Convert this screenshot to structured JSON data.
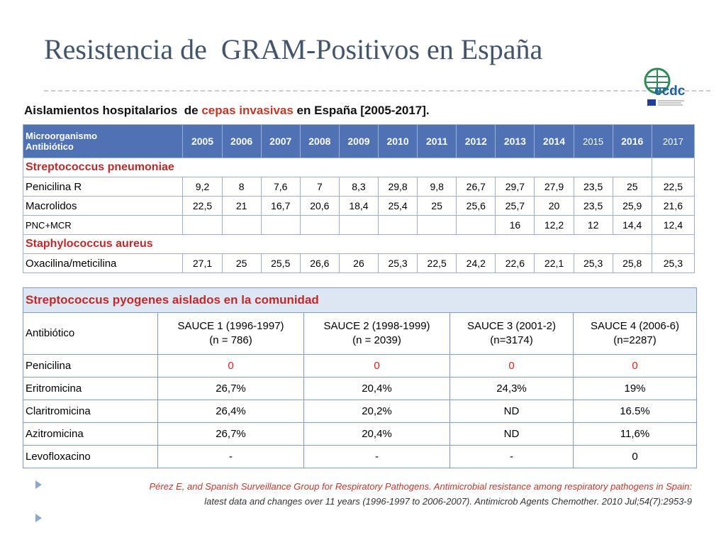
{
  "title": "Resistencia de  GRAM-Positivos en España",
  "logo_text": "ecdc",
  "subtitle": [
    "Aislamientos hospitalarios  de ",
    "cepas invasivas",
    " en España [2005-2017]."
  ],
  "table1": {
    "header_label": [
      "Microorganismo",
      "Antibiótico"
    ],
    "years": [
      "2005",
      "2006",
      "2007",
      "2008",
      "2009",
      "2010",
      "2011",
      "2012",
      "2013",
      "2014",
      "2015",
      "2016",
      "2017"
    ],
    "rows": [
      {
        "section": "Streptococcus pneumoniae"
      },
      {
        "label": "Penicilina R",
        "cells": [
          "9,2",
          "8",
          "7,6",
          "7",
          "8,3",
          "29,8",
          "9,8",
          "26,7",
          "29,7",
          "27,9",
          "23,5",
          "25",
          "22,5"
        ]
      },
      {
        "label": "Macrolidos",
        "cells": [
          "22,5",
          "21",
          "16,7",
          "20,6",
          "18,4",
          "25,4",
          "25",
          "25,6",
          "25,7",
          "20",
          "23,5",
          "25,9",
          "21,6"
        ]
      },
      {
        "label": "PNC+MCR",
        "cells": [
          null,
          null,
          null,
          null,
          null,
          null,
          null,
          null,
          "16",
          "12,2",
          "12",
          "14,4",
          "12,4"
        ]
      },
      {
        "section": "Staphylococcus aureus"
      },
      {
        "label": "Oxacilina/meticilina",
        "cells": [
          "27,1",
          "25",
          "25,5",
          "26,6",
          "26",
          "25,3",
          "22,5",
          "24,2",
          "22,6",
          "22,1",
          "25,3",
          "25,8",
          "25,3"
        ]
      }
    ]
  },
  "table2": {
    "title": "Streptococcus pyogenes aislados en la comunidad",
    "header": [
      [
        "Antibiótico"
      ],
      [
        "SAUCE 1 (1996-1997)",
        "(n = 786)"
      ],
      [
        "SAUCE 2  (1998-1999)",
        "(n = 2039)"
      ],
      [
        "SAUCE 3  (2001-2)",
        "(n=3174)"
      ],
      [
        "SAUCE 4 (2006-6)",
        "(n=2287)"
      ]
    ],
    "rows": [
      [
        "Penicilina",
        "0",
        "0",
        "0",
        "0"
      ],
      [
        "Eritromicina",
        "26,7%",
        "20,4%",
        "24,3%",
        "19%"
      ],
      [
        "Claritromicina",
        "26,4%",
        "20,2%",
        "ND",
        "16.5%"
      ],
      [
        "Azitromicina",
        "26,7%",
        "20,4%",
        "ND",
        "11,6%"
      ],
      [
        "Levofloxacino",
        "-",
        "-",
        "-",
        "0"
      ]
    ]
  },
  "citation": [
    "Pérez E,  and  Spanish Surveillance Group for Respiratory Pathogens. Antimicrobial resistance among respiratory pathogens in Spain:",
    "latest data and changes over 11 years (1996-1997 to 2006-2007). Antimicrob Agents Chemother. 2010 Jul;54(7):2953-9"
  ]
}
